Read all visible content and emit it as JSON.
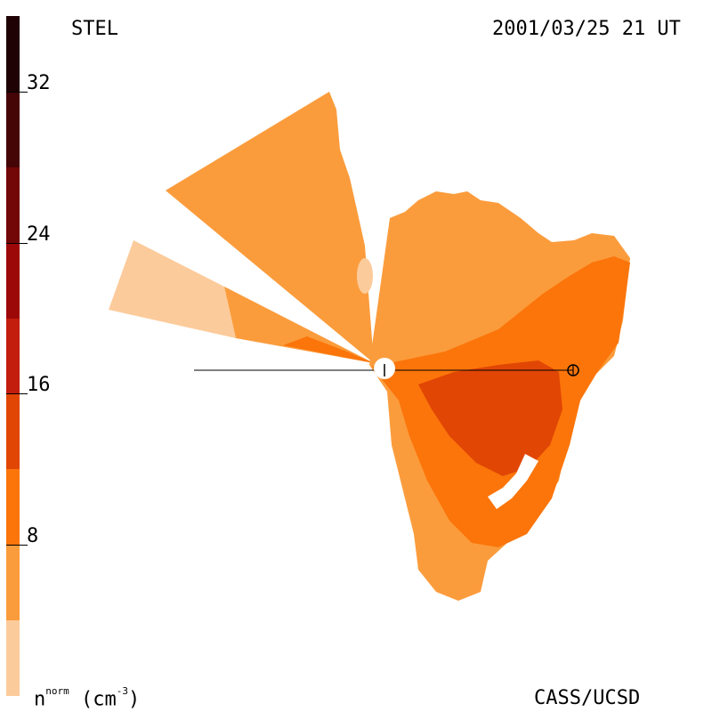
{
  "header": {
    "instrument": "STEL",
    "timestamp": "2001/03/25 21 UT"
  },
  "footer": {
    "unit_base": "n",
    "unit_sup": "norm",
    "unit_rest": " (cm",
    "unit_exp": "-3",
    "unit_close": ")",
    "credit": "CASS/UCSD"
  },
  "colorbar": {
    "range": [
      0,
      36
    ],
    "ticks": [
      "32",
      "24",
      "16",
      "8"
    ],
    "levels": [
      {
        "min": 0,
        "max": 4,
        "color": "#fccb9b"
      },
      {
        "min": 4,
        "max": 8,
        "color": "#fb9c3c"
      },
      {
        "min": 8,
        "max": 12,
        "color": "#fb750a"
      },
      {
        "min": 12,
        "max": 16,
        "color": "#e14604"
      },
      {
        "min": 16,
        "max": 20,
        "color": "#c21d0d"
      },
      {
        "min": 20,
        "max": 24,
        "color": "#9c0808"
      },
      {
        "min": 24,
        "max": 28,
        "color": "#730606"
      },
      {
        "min": 28,
        "max": 32,
        "color": "#450405"
      },
      {
        "min": 32,
        "max": 36,
        "color": "#1f0203"
      }
    ]
  },
  "map": {
    "sun_marker": "sun-disk",
    "earth_symbol": "⊕",
    "sun_tick": "|"
  }
}
